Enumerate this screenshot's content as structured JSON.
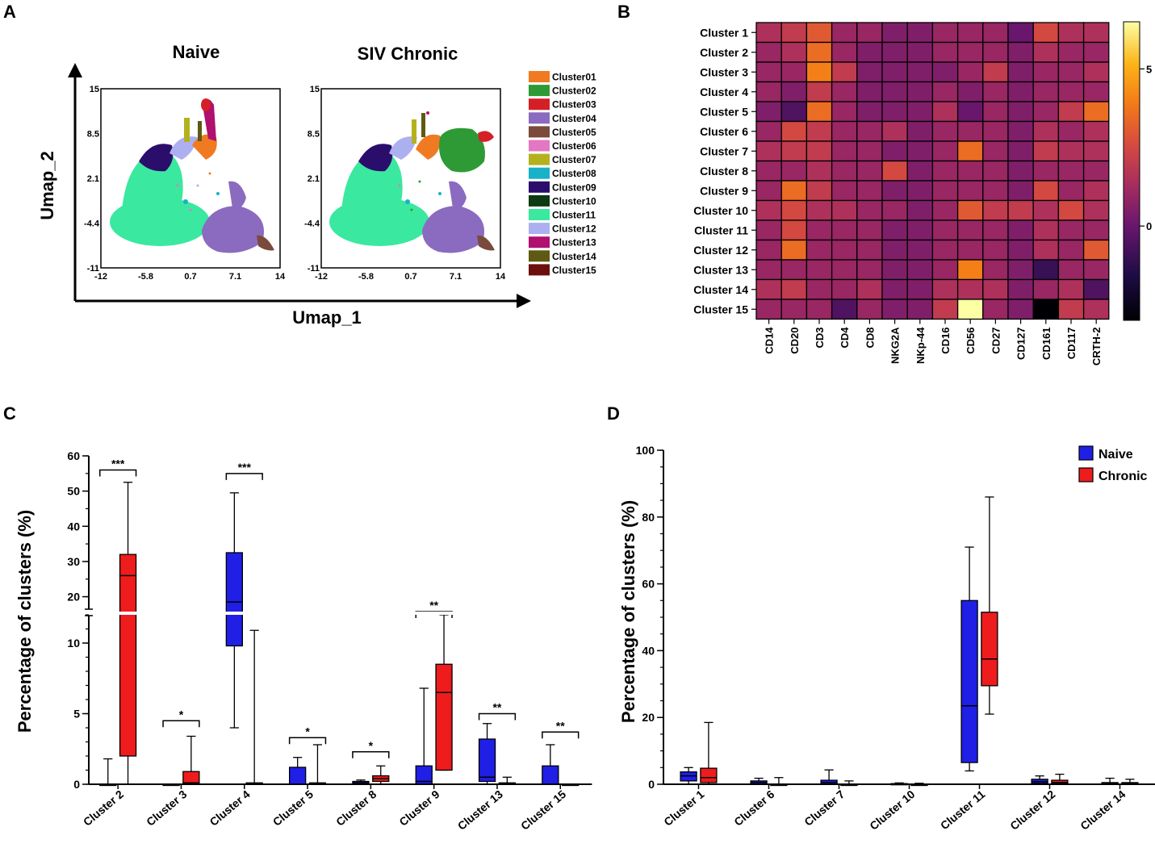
{
  "panel_letters": [
    "A",
    "B",
    "C",
    "D"
  ],
  "colors": {
    "naive": "#1f1fe6",
    "chronic": "#ee1c1c"
  },
  "chart_data": [
    {
      "panel": "A",
      "type": "scatter",
      "xlabel": "Umap_1",
      "ylabel": "Umap_2",
      "subplots": [
        {
          "title": "Naive"
        },
        {
          "title": "SIV Chronic"
        }
      ],
      "xticks": [
        "-12",
        "-5.8",
        "0.7",
        "7.1",
        "14"
      ],
      "yticks": [
        "15",
        "8.5",
        "2.1",
        "-4.4",
        "-11"
      ],
      "legend": [
        {
          "label": "Cluster01",
          "color": "#f07a22"
        },
        {
          "label": "Cluster02",
          "color": "#2e9a35"
        },
        {
          "label": "Cluster03",
          "color": "#d51f26"
        },
        {
          "label": "Cluster04",
          "color": "#8a6bbf"
        },
        {
          "label": "Cluster05",
          "color": "#7a4a3c"
        },
        {
          "label": "Cluster06",
          "color": "#e377c2"
        },
        {
          "label": "Cluster07",
          "color": "#b3b21e"
        },
        {
          "label": "Cluster08",
          "color": "#17b2c8"
        },
        {
          "label": "Cluster09",
          "color": "#2b0e6b"
        },
        {
          "label": "Cluster10",
          "color": "#0c3b12"
        },
        {
          "label": "Cluster11",
          "color": "#3be8a0"
        },
        {
          "label": "Cluster12",
          "color": "#adb0f0"
        },
        {
          "label": "Cluster13",
          "color": "#b0106e"
        },
        {
          "label": "Cluster14",
          "color": "#5e5a12"
        },
        {
          "label": "Cluster15",
          "color": "#6b0f0f"
        }
      ]
    },
    {
      "panel": "B",
      "type": "heatmap",
      "rows": [
        "Cluster 1",
        "Cluster 2",
        "Cluster 3",
        "Cluster 4",
        "Cluster 5",
        "Cluster 6",
        "Cluster 7",
        "Cluster 8",
        "Cluster 9",
        "Cluster 10",
        "Cluster 11",
        "Cluster 12",
        "Cluster 13",
        "Cluster 14",
        "Cluster 15"
      ],
      "columns": [
        "CD14",
        "CD20",
        "CD3",
        "CD4",
        "CD8",
        "NKG2A",
        "NKp-44",
        "CD16",
        "CD56",
        "CD27",
        "CD127",
        "CD161",
        "CD117",
        "CRTH-2"
      ],
      "values": [
        [
          1.5,
          2.0,
          3.0,
          1.0,
          1.0,
          0.5,
          0.5,
          1.0,
          1.0,
          1.0,
          0.0,
          2.5,
          1.5,
          1.5
        ],
        [
          1.0,
          1.5,
          3.5,
          1.0,
          0.5,
          0.5,
          0.5,
          1.0,
          1.0,
          1.0,
          0.5,
          1.5,
          1.0,
          1.0
        ],
        [
          1.0,
          1.0,
          4.0,
          2.0,
          0.5,
          0.5,
          0.5,
          0.5,
          1.0,
          2.0,
          0.5,
          1.0,
          1.0,
          1.5
        ],
        [
          1.0,
          0.5,
          2.0,
          1.0,
          0.5,
          0.5,
          0.5,
          1.0,
          0.5,
          1.0,
          0.5,
          1.0,
          1.0,
          1.0
        ],
        [
          0.5,
          -0.5,
          3.5,
          1.0,
          0.5,
          0.5,
          0.5,
          1.5,
          0.0,
          1.0,
          0.5,
          1.0,
          2.0,
          3.5
        ],
        [
          1.0,
          2.5,
          2.0,
          1.0,
          1.0,
          1.5,
          0.5,
          1.0,
          1.0,
          1.0,
          0.5,
          1.5,
          1.0,
          1.5
        ],
        [
          1.5,
          2.0,
          2.0,
          1.0,
          1.0,
          0.5,
          0.5,
          1.0,
          3.5,
          1.0,
          0.5,
          2.0,
          1.5,
          1.5
        ],
        [
          1.0,
          1.0,
          1.5,
          1.0,
          1.0,
          2.5,
          0.5,
          1.0,
          1.0,
          1.0,
          0.5,
          1.0,
          1.0,
          1.0
        ],
        [
          1.0,
          3.5,
          2.0,
          1.0,
          1.0,
          0.5,
          0.5,
          1.0,
          1.0,
          1.0,
          0.5,
          2.5,
          1.0,
          1.5
        ],
        [
          1.5,
          2.5,
          1.5,
          1.5,
          1.0,
          1.0,
          0.5,
          1.0,
          3.0,
          2.0,
          2.0,
          1.5,
          2.5,
          1.5
        ],
        [
          1.0,
          2.5,
          1.0,
          1.0,
          1.0,
          0.5,
          0.5,
          1.0,
          1.0,
          1.0,
          0.5,
          1.5,
          1.0,
          1.0
        ],
        [
          1.0,
          3.5,
          1.0,
          1.0,
          1.0,
          0.5,
          0.5,
          1.0,
          1.0,
          1.0,
          0.5,
          1.5,
          1.0,
          3.0
        ],
        [
          1.0,
          1.0,
          1.0,
          1.0,
          1.0,
          0.5,
          0.5,
          1.0,
          4.0,
          1.0,
          0.5,
          -1.0,
          1.0,
          1.0
        ],
        [
          1.5,
          2.0,
          1.0,
          1.0,
          1.5,
          0.5,
          0.5,
          1.5,
          1.5,
          1.5,
          0.5,
          1.0,
          1.5,
          -0.5
        ],
        [
          1.0,
          1.0,
          1.0,
          -0.5,
          1.0,
          0.5,
          0.5,
          2.0,
          6.5,
          1.0,
          0.5,
          -3.0,
          2.0,
          1.5
        ]
      ],
      "colorbar": {
        "ticks": [
          {
            "value": 5,
            "label": "5"
          },
          {
            "value": 0,
            "label": "0"
          }
        ],
        "range": [
          -3,
          6.5
        ]
      }
    },
    {
      "panel": "C",
      "type": "box",
      "ylabel": "Percentage of clusters (%)",
      "categories": [
        "Cluster 2",
        "Cluster 3",
        "Cluster 4",
        "Cluster 5",
        "Cluster 8",
        "Cluster 9",
        "Cluster 13",
        "Cluster 15"
      ],
      "yticks": [
        {
          "value": 0,
          "label": "0"
        },
        {
          "value": 5,
          "label": "5"
        },
        {
          "value": 10,
          "label": "10"
        },
        {
          "value": 20,
          "label": "20"
        },
        {
          "value": 30,
          "label": "30"
        },
        {
          "value": 40,
          "label": "40"
        },
        {
          "value": 50,
          "label": "50"
        },
        {
          "value": 60,
          "label": "60"
        }
      ],
      "axis_break": [
        12.5,
        16
      ],
      "ylim": [
        0,
        60
      ],
      "series": [
        {
          "name": "Naive",
          "boxes": [
            {
              "min": 0,
              "q1": 0,
              "median": 0,
              "q3": 0,
              "max": 1.8
            },
            {
              "min": 0,
              "q1": 0,
              "median": 0,
              "q3": 0,
              "max": 0
            },
            {
              "min": 4,
              "q1": 9.8,
              "median": 18.5,
              "q3": 32.5,
              "max": 49.5
            },
            {
              "min": 0,
              "q1": 0,
              "median": 0,
              "q3": 1.2,
              "max": 1.9
            },
            {
              "min": 0,
              "q1": 0,
              "median": 0.1,
              "q3": 0.2,
              "max": 0.3
            },
            {
              "min": 0,
              "q1": 0,
              "median": 0.2,
              "q3": 1.3,
              "max": 6.8
            },
            {
              "min": 0,
              "q1": 0.2,
              "median": 0.5,
              "q3": 3.2,
              "max": 4.3
            },
            {
              "min": 0,
              "q1": 0,
              "median": 0,
              "q3": 1.3,
              "max": 2.8
            }
          ]
        },
        {
          "name": "Chronic",
          "boxes": [
            {
              "min": 0,
              "q1": 2.0,
              "median": 26,
              "q3": 32,
              "max": 52.5
            },
            {
              "min": 0,
              "q1": 0,
              "median": 0.1,
              "q3": 0.9,
              "max": 3.4
            },
            {
              "min": 0,
              "q1": 0,
              "median": 0,
              "q3": 0.1,
              "max": 10.9
            },
            {
              "min": 0,
              "q1": 0,
              "median": 0,
              "q3": 0.1,
              "max": 2.8
            },
            {
              "min": 0,
              "q1": 0.2,
              "median": 0.4,
              "q3": 0.6,
              "max": 1.3
            },
            {
              "min": 1.0,
              "q1": 1.0,
              "median": 6.5,
              "q3": 8.5,
              "max": 12.0
            },
            {
              "min": 0,
              "q1": 0,
              "median": 0,
              "q3": 0.1,
              "max": 0.5
            },
            {
              "min": 0,
              "q1": 0,
              "median": 0,
              "q3": 0,
              "max": 0
            }
          ]
        }
      ],
      "significance": [
        {
          "label": "***",
          "value": 56
        },
        {
          "label": "*",
          "value": 4.5
        },
        {
          "label": "***",
          "value": 55
        },
        {
          "label": "*",
          "value": 3.3
        },
        {
          "label": "*",
          "value": 2.3
        },
        {
          "label": "**",
          "value": 13.2
        },
        {
          "label": "**",
          "value": 5.0
        },
        {
          "label": "**",
          "value": 3.7
        }
      ]
    },
    {
      "panel": "D",
      "type": "box",
      "ylabel": "Percentage of clusters (%)",
      "categories": [
        "Cluster 1",
        "Cluster 6",
        "Cluster 7",
        "Cluster 10",
        "Cluster 11",
        "Cluster 12",
        "Cluster 14"
      ],
      "yticks": [
        {
          "value": 0,
          "label": "0"
        },
        {
          "value": 20,
          "label": "20"
        },
        {
          "value": 40,
          "label": "40"
        },
        {
          "value": 60,
          "label": "60"
        },
        {
          "value": 80,
          "label": "80"
        },
        {
          "value": 100,
          "label": "100"
        }
      ],
      "ylim": [
        0,
        100
      ],
      "legend": [
        {
          "label": "Naive"
        },
        {
          "label": "Chronic"
        }
      ],
      "series": [
        {
          "name": "Naive",
          "boxes": [
            {
              "min": 0,
              "q1": 1.0,
              "median": 2.5,
              "q3": 3.7,
              "max": 5.0
            },
            {
              "min": 0,
              "q1": 0,
              "median": 0.5,
              "q3": 1.0,
              "max": 1.8
            },
            {
              "min": 0,
              "q1": 0,
              "median": 0.5,
              "q3": 1.2,
              "max": 4.3
            },
            {
              "min": 0,
              "q1": 0,
              "median": 0,
              "q3": 0.2,
              "max": 0.4
            },
            {
              "min": 4,
              "q1": 6.5,
              "median": 23.5,
              "q3": 55,
              "max": 71
            },
            {
              "min": 0,
              "q1": 0.3,
              "median": 0.8,
              "q3": 1.5,
              "max": 2.5
            },
            {
              "min": 0,
              "q1": 0,
              "median": 0.2,
              "q3": 0.5,
              "max": 1.8
            }
          ]
        },
        {
          "name": "Chronic",
          "boxes": [
            {
              "min": 0,
              "q1": 0.5,
              "median": 2.0,
              "q3": 4.8,
              "max": 18.5
            },
            {
              "min": 0,
              "q1": 0,
              "median": 0,
              "q3": 0,
              "max": 2.0
            },
            {
              "min": 0,
              "q1": 0,
              "median": 0,
              "q3": 0,
              "max": 1.0
            },
            {
              "min": 0,
              "q1": 0,
              "median": 0,
              "q3": 0,
              "max": 0.3
            },
            {
              "min": 21,
              "q1": 29.5,
              "median": 37.5,
              "q3": 51.5,
              "max": 86
            },
            {
              "min": 0,
              "q1": 0.2,
              "median": 0.5,
              "q3": 1.2,
              "max": 3.0
            },
            {
              "min": 0,
              "q1": 0,
              "median": 0.2,
              "q3": 0.5,
              "max": 1.5
            }
          ]
        }
      ]
    }
  ]
}
